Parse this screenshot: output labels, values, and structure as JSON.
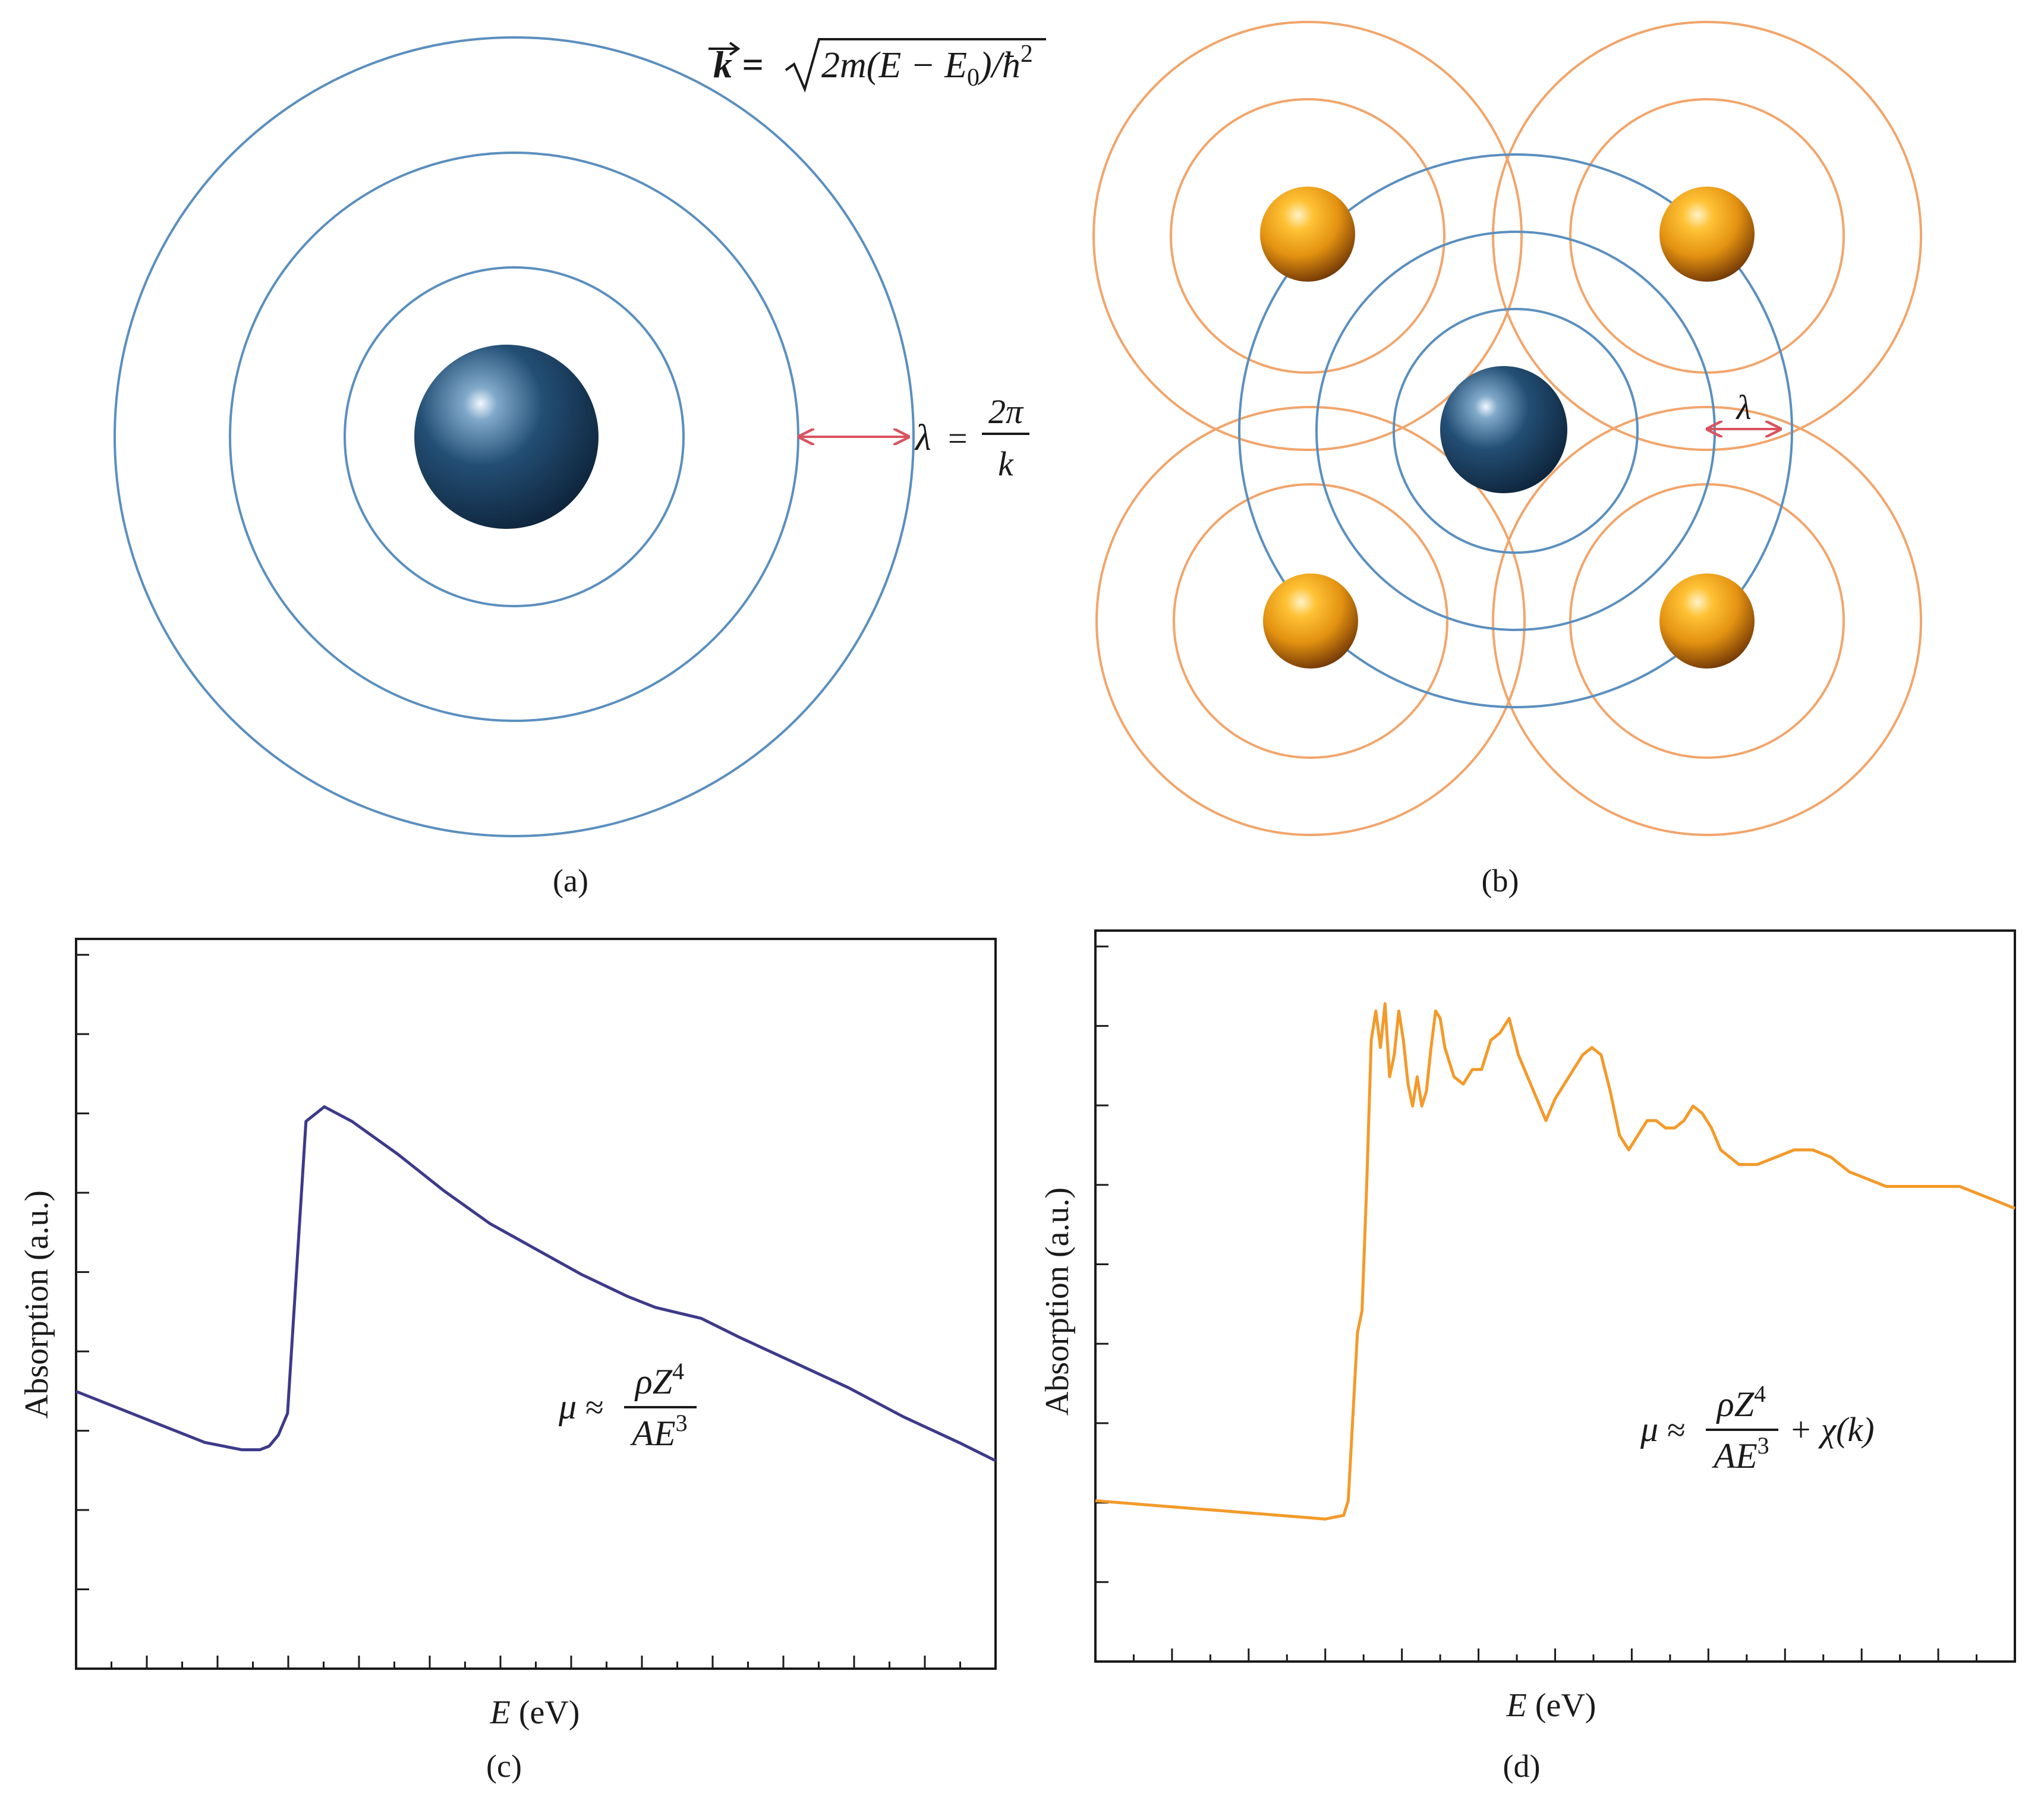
{
  "panels": {
    "a": {
      "caption": "(a)",
      "k_formula": {
        "k": "k",
        "eq": " = ",
        "rad_a": "2m(E − E",
        "rad_sub": "0",
        "rad_b": ")/ħ",
        "rad_sup": "2"
      },
      "lambda_formula": {
        "lambda": "λ",
        "eq": "=",
        "num": "2π",
        "den": "k"
      }
    },
    "b": {
      "caption": "(b)",
      "lambda_label": "λ"
    },
    "c": {
      "caption": "(c)",
      "formula": {
        "mu": "μ",
        "approx": "≈",
        "num": "ρZ",
        "num_sup": "4",
        "den": "AE",
        "den_sup": "3"
      }
    },
    "d": {
      "caption": "(d)",
      "formula": {
        "mu": "μ",
        "approx": "≈",
        "num": "ρZ",
        "num_sup": "4",
        "den": "AE",
        "den_sup": "3",
        "extra": "+ χ(k)"
      }
    }
  },
  "colors": {
    "wave_blue": "#5a8fbf",
    "wave_orange": "#f2a56b",
    "arrow_red": "#d9535f",
    "absorber_atom": "#163a5a",
    "scatterer_atom": "#e89a14",
    "curve_c": "#3d3a8a",
    "curve_d": "#f39a2a"
  },
  "chart_data": [
    {
      "type": "line",
      "panel": "c",
      "xlabel_var": "E",
      "xlabel_unit": " (eV)",
      "ylabel": "Absorption (a.u.)",
      "x_ticks_labeled": false,
      "y_ticks_labeled": false,
      "xlim": [
        0,
        100
      ],
      "ylim": [
        0,
        100
      ],
      "series": [
        {
          "x": [
            0,
            5,
            10,
            14,
            18,
            20,
            21,
            22,
            23,
            24,
            25,
            27,
            30,
            35,
            40,
            45,
            50,
            55,
            60,
            63,
            68,
            72,
            78,
            84,
            90,
            96,
            100
          ],
          "y": [
            38,
            35.5,
            33,
            31,
            30,
            30,
            30.5,
            32,
            35,
            55,
            75,
            77,
            75,
            70.5,
            65.5,
            61,
            57.5,
            54,
            51,
            49.5,
            48,
            45.5,
            42,
            38.5,
            34.5,
            31,
            28.5
          ]
        }
      ]
    },
    {
      "type": "line",
      "panel": "d",
      "xlabel_var": "E",
      "xlabel_unit": " (eV)",
      "ylabel": "Absorption (a.u.)",
      "x_ticks_labeled": false,
      "y_ticks_labeled": false,
      "xlim": [
        0,
        100
      ],
      "ylim": [
        0,
        100
      ],
      "series": [
        {
          "x": [
            0,
            10,
            20,
            25,
            27,
            27.5,
            28.5,
            29,
            29.5,
            30,
            30.5,
            31,
            31.5,
            32,
            32.5,
            33,
            33.5,
            34,
            34.5,
            35,
            35.5,
            36,
            36.5,
            37,
            37.5,
            38,
            39,
            40,
            41,
            42,
            43,
            44,
            45,
            46,
            47,
            48,
            49,
            50,
            51,
            52,
            53,
            54,
            55,
            56,
            57,
            58,
            59,
            60,
            61,
            62,
            63,
            64,
            65,
            66,
            67,
            68,
            69,
            70,
            72,
            74,
            76,
            78,
            80,
            82,
            84,
            86,
            88,
            90,
            92,
            94,
            96,
            98,
            100
          ],
          "y": [
            22,
            21,
            20,
            19.5,
            20,
            22,
            45,
            48,
            65,
            85,
            89,
            84,
            90,
            80,
            83,
            89,
            85,
            79,
            76,
            80,
            76,
            78,
            84,
            89,
            88,
            84,
            80,
            79,
            81,
            81,
            85,
            86,
            88,
            83,
            80,
            77,
            74,
            77,
            79,
            81,
            83,
            84,
            83,
            78,
            72,
            70,
            72,
            74,
            74,
            73,
            73,
            74,
            76,
            75,
            73,
            70,
            69,
            68,
            68,
            69,
            70,
            70,
            69,
            67,
            66,
            65,
            65,
            65,
            65,
            65,
            64,
            63,
            62
          ]
        }
      ]
    }
  ]
}
